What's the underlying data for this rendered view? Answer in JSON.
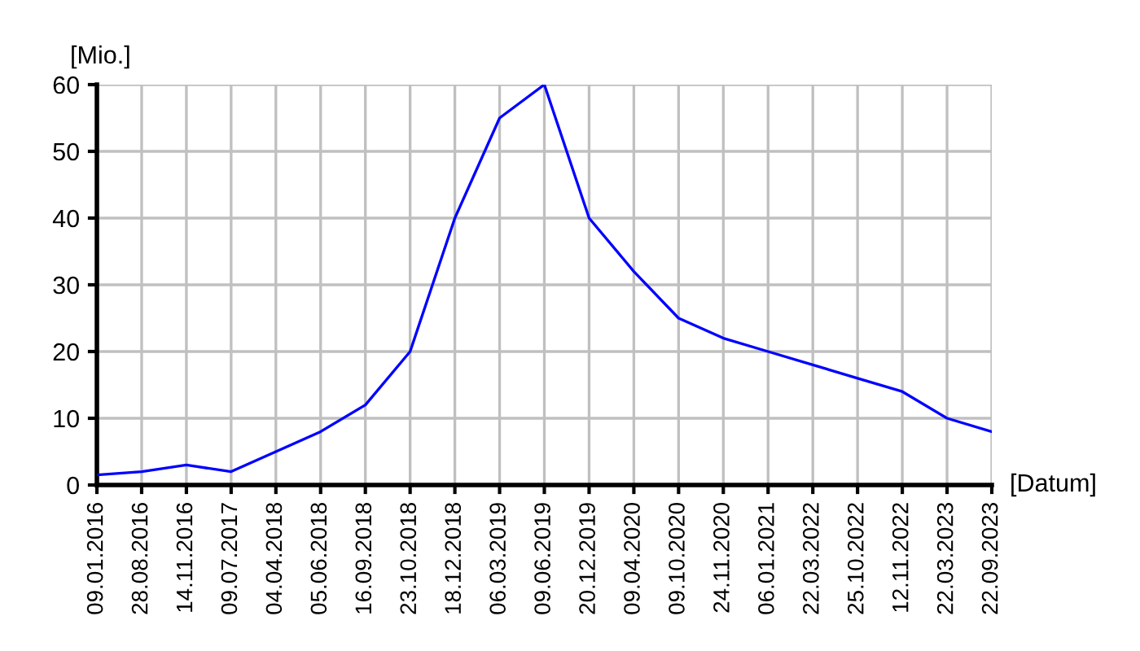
{
  "chart_data": {
    "type": "line",
    "ylabel": "[Mio.]",
    "xlabel": "[Datum]",
    "categories": [
      "09.01.2016",
      "28.08.2016",
      "14.11.2016",
      "09.07.2017",
      "04.04.2018",
      "05.06.2018",
      "16.09.2018",
      "23.10.2018",
      "18.12.2018",
      "06.03.2019",
      "09.06.2019",
      "20.12.2019",
      "09.04.2020",
      "09.10.2020",
      "24.11.2020",
      "06.01.2021",
      "22.03.2022",
      "25.10.2022",
      "12.11.2022",
      "22.03.2023",
      "22.09.2023"
    ],
    "series": [
      {
        "color": "#0000ff",
        "values": [
          1.5,
          2,
          3,
          2,
          5,
          8,
          12,
          20,
          40,
          55,
          60,
          40,
          32,
          25,
          22,
          20,
          18,
          16,
          14,
          10,
          8
        ]
      }
    ],
    "ylim": [
      0,
      60
    ],
    "yticks": [
      0,
      10,
      20,
      30,
      40,
      50,
      60
    ],
    "grid": true,
    "legend": false,
    "marker": "none",
    "line_style": "solid"
  }
}
